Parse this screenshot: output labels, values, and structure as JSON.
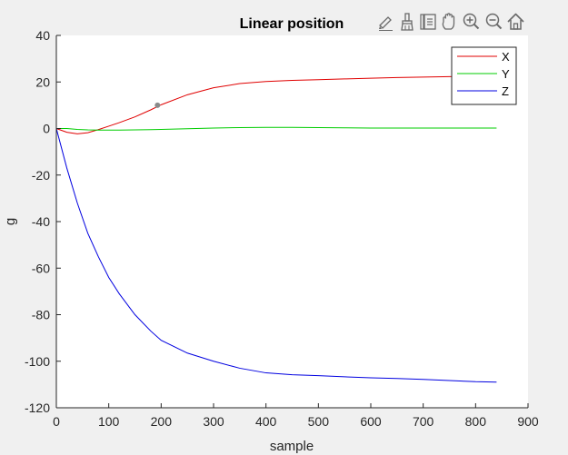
{
  "toolbar": {
    "buttons": [
      {
        "icon": "edit-pencil-icon"
      },
      {
        "icon": "brush-icon"
      },
      {
        "icon": "data-tips-icon"
      },
      {
        "icon": "pan-hand-icon"
      },
      {
        "icon": "zoom-in-icon"
      },
      {
        "icon": "zoom-out-icon"
      },
      {
        "icon": "home-icon"
      }
    ]
  },
  "chart_data": {
    "type": "line",
    "title": "Linear position",
    "xlabel": "sample",
    "ylabel": "g",
    "xlim": [
      0,
      900
    ],
    "ylim": [
      -120,
      40
    ],
    "xticks": [
      0,
      100,
      200,
      300,
      400,
      500,
      600,
      700,
      800,
      900
    ],
    "yticks": [
      -120,
      -100,
      -80,
      -60,
      -40,
      -20,
      0,
      20,
      40
    ],
    "grid": false,
    "legend": {
      "position": "top-right"
    },
    "x": [
      0,
      20,
      40,
      60,
      80,
      100,
      120,
      150,
      180,
      200,
      250,
      300,
      350,
      400,
      450,
      500,
      550,
      600,
      650,
      700,
      750,
      800,
      840
    ],
    "series": [
      {
        "name": "X",
        "color": "#e00000",
        "values": [
          0,
          -1.6,
          -2.3,
          -1.8,
          -0.5,
          1.0,
          2.5,
          5.0,
          8.0,
          10.2,
          14.5,
          17.5,
          19.3,
          20.2,
          20.7,
          21.0,
          21.3,
          21.6,
          21.9,
          22.1,
          22.3,
          22.5,
          22.6
        ]
      },
      {
        "name": "Y",
        "color": "#00cc00",
        "values": [
          0,
          0,
          -0.4,
          -0.6,
          -0.7,
          -0.7,
          -0.7,
          -0.6,
          -0.5,
          -0.4,
          -0.1,
          0.2,
          0.4,
          0.5,
          0.5,
          0.4,
          0.3,
          0.2,
          0.2,
          0.2,
          0.2,
          0.2,
          0.2
        ]
      },
      {
        "name": "Z",
        "color": "#0000e0",
        "values": [
          0,
          -17,
          -32,
          -45,
          -55,
          -64,
          -71,
          -80,
          -87,
          -91,
          -96.5,
          -100,
          -103,
          -105,
          -105.8,
          -106.2,
          -106.7,
          -107.1,
          -107.4,
          -107.8,
          -108.3,
          -108.8,
          -109.0
        ]
      }
    ],
    "annotations": [
      {
        "type": "data-tip-marker",
        "x": 193,
        "y": 10,
        "color": "#8a8a8a"
      }
    ]
  }
}
